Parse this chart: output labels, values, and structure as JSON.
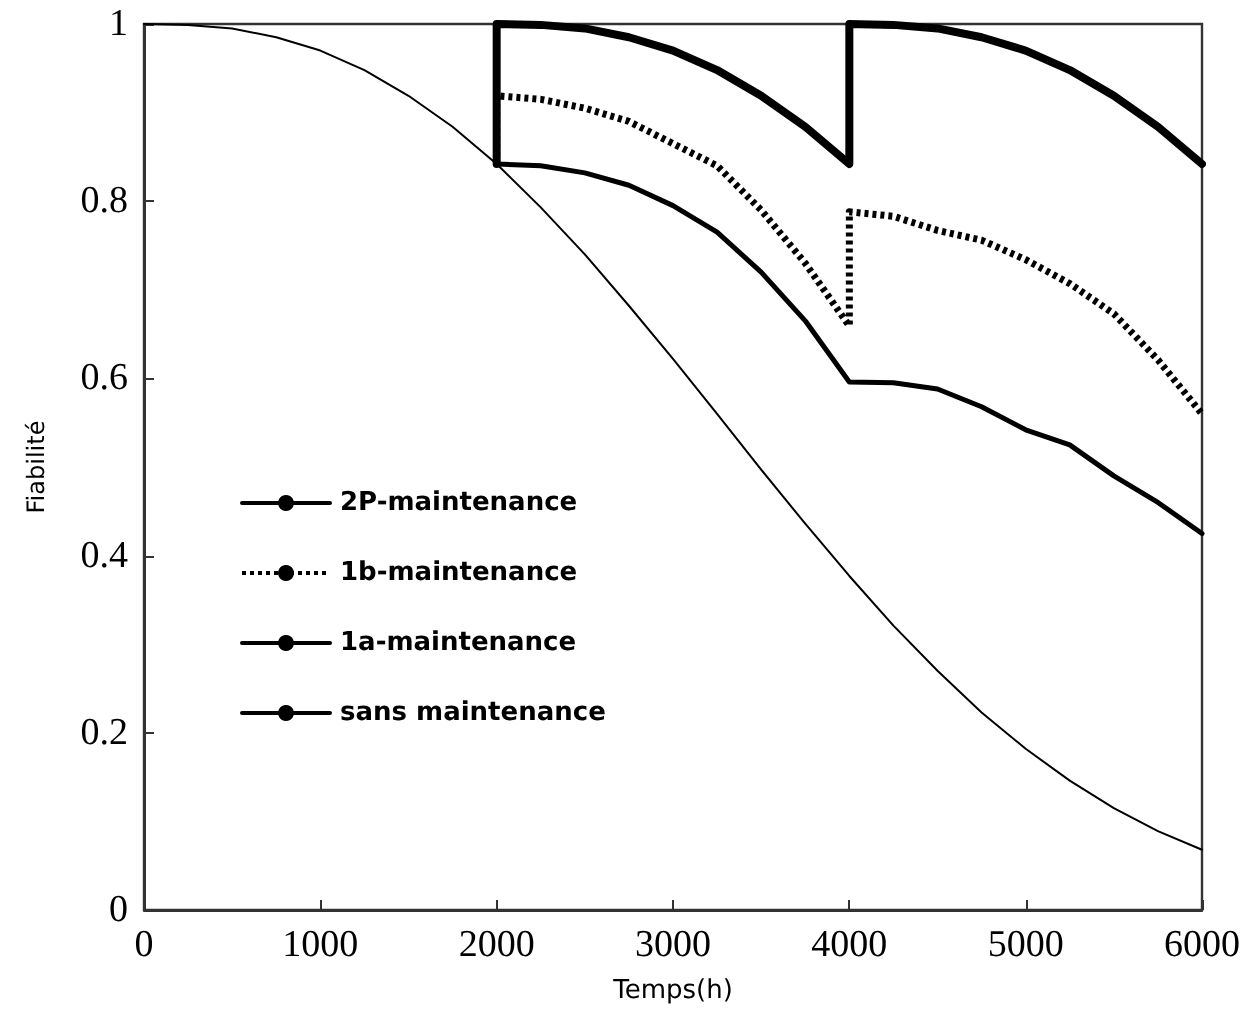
{
  "chart_data": {
    "type": "line",
    "xlabel": "Temps(h)",
    "ylabel": "Fiabilité",
    "xlim": [
      0,
      6000
    ],
    "xticks": [
      0,
      1000,
      2000,
      3000,
      4000,
      5000,
      6000
    ],
    "ylim": [
      0,
      1
    ],
    "yticks": [
      0,
      0.2,
      0.4,
      0.6,
      0.8,
      1
    ],
    "grid": false,
    "legend": "center left",
    "marker": "none",
    "series": [
      {
        "name": "2P-maintenance",
        "color": "#000000",
        "line_style": "solid",
        "x": [
          2000,
          2000,
          2250,
          2500,
          2750,
          3000,
          3250,
          3500,
          3750,
          4000,
          4000,
          4250,
          4500,
          4750,
          5000,
          5250,
          5500,
          5750,
          6000
        ],
        "values": [
          0.842,
          1,
          0.999,
          0.995,
          0.985,
          0.97,
          0.948,
          0.919,
          0.884,
          0.842,
          1,
          0.999,
          0.995,
          0.985,
          0.97,
          0.948,
          0.919,
          0.884,
          0.842
        ]
      },
      {
        "name": "1b-maintenance",
        "color": "#000000",
        "line_style": "dotted",
        "x": [
          2000,
          2000,
          2250,
          2500,
          2750,
          3000,
          3250,
          3500,
          3750,
          4000,
          4000,
          4250,
          4500,
          4750,
          5000,
          5250,
          5500,
          5750,
          6000
        ],
        "values": [
          0.842,
          0.919,
          0.915,
          0.905,
          0.89,
          0.865,
          0.84,
          0.79,
          0.73,
          0.659,
          0.788,
          0.783,
          0.767,
          0.756,
          0.734,
          0.707,
          0.673,
          0.621,
          0.56
        ]
      },
      {
        "name": "1a-maintenance",
        "color": "#000000",
        "line_style": "solid",
        "x": [
          2000,
          2250,
          2500,
          2750,
          3000,
          3250,
          3500,
          3750,
          4000,
          4250,
          4500,
          4750,
          5000,
          5250,
          5500,
          5750,
          6000
        ],
        "values": [
          0.842,
          0.84,
          0.832,
          0.818,
          0.795,
          0.765,
          0.72,
          0.665,
          0.596,
          0.595,
          0.588,
          0.568,
          0.542,
          0.525,
          0.49,
          0.46,
          0.425
        ]
      },
      {
        "name": "sans maintenance",
        "color": "#000000",
        "line_style": "solid",
        "x": [
          0,
          250,
          500,
          750,
          1000,
          1250,
          1500,
          1750,
          2000,
          2250,
          2500,
          2750,
          3000,
          3250,
          3500,
          3750,
          4000,
          4250,
          4500,
          4750,
          5000,
          5250,
          5500,
          5750,
          6000
        ],
        "values": [
          1,
          0.999,
          0.995,
          0.985,
          0.97,
          0.948,
          0.919,
          0.884,
          0.842,
          0.793,
          0.74,
          0.682,
          0.622,
          0.56,
          0.497,
          0.436,
          0.377,
          0.321,
          0.27,
          0.223,
          0.182,
          0.146,
          0.115,
          0.089,
          0.068
        ]
      }
    ]
  }
}
